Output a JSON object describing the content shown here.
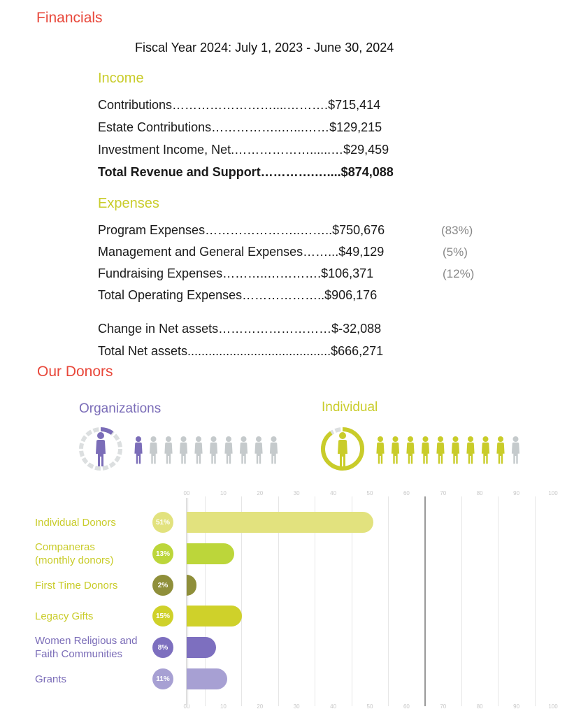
{
  "colors": {
    "heading_red": "#e8473a",
    "yellow": "#c9cc2a",
    "purple": "#7b6db8",
    "grey_figure": "#c5cacc"
  },
  "financials": {
    "title": "Financials",
    "fiscal_year": "Fiscal Year 2024: July 1, 2023 - June 30, 2024",
    "income": {
      "heading": "Income",
      "lines": [
        {
          "text": "Contributions……………………....……….$715,414",
          "bold": false
        },
        {
          "text": "Estate Contributions……………..…...……$129,215",
          "bold": false
        },
        {
          "text": "Investment Income, Net.………………......…$29,459",
          "bold": false
        },
        {
          "text": "Total Revenue and Support………….…....$874,088",
          "bold": true
        }
      ]
    },
    "expenses": {
      "heading": "Expenses",
      "lines": [
        {
          "text": "Program Expenses…………………..……..$750,676",
          "pct": "(83%)"
        },
        {
          "text": "Management and General Expenses……...$49,129",
          "pct": "(5%)"
        },
        {
          "text": "Fundraising Expenses………..………….$106,371",
          "pct": "(12%)"
        },
        {
          "text": "Total Operating Expenses………………..$906,176",
          "pct": ""
        }
      ]
    },
    "net": [
      {
        "text": "Change in Net assets………………………$-32,088"
      },
      {
        "text": "Total Net assets.........................................$666,271"
      }
    ]
  },
  "donors": {
    "title": "Our Donors",
    "organizations": {
      "label": "Organizations",
      "highlighted_of_ten": 1,
      "ring_fraction": 0.1
    },
    "individual": {
      "label": "Individual",
      "highlighted_of_ten": 9,
      "ring_fraction": 0.9
    }
  },
  "chart_data": {
    "type": "bar",
    "orientation": "horizontal",
    "categories": [
      "Individual Donors",
      "Companeras (monthly donors)",
      "First Time Donors",
      "Legacy Gifts",
      "Women Religious and Faith Communities",
      "Grants"
    ],
    "label_lines": [
      [
        "Individual Donors"
      ],
      [
        "Companeras",
        "(monthly donors)"
      ],
      [
        "First Time Donors"
      ],
      [
        "Legacy Gifts"
      ],
      [
        "Women Religious and",
        "Faith Communities"
      ],
      [
        "Grants"
      ]
    ],
    "values": [
      51,
      13,
      2,
      15,
      8,
      11
    ],
    "badges": [
      "51%",
      "13%",
      "2%",
      "15%",
      "8%",
      "11%"
    ],
    "bar_colors": [
      "#e2e27e",
      "#bcd63a",
      "#8f8f3a",
      "#cfd12a",
      "#7d6fbf",
      "#a7a0d3"
    ],
    "label_colors": [
      "#c9cc2a",
      "#c9cc2a",
      "#c9cc2a",
      "#c9cc2a",
      "#7b6db8",
      "#7b6db8"
    ],
    "ticks": [
      "00",
      "10",
      "20",
      "30",
      "40",
      "50",
      "60",
      "70",
      "80",
      "90",
      "100"
    ],
    "xlim": [
      0,
      100
    ],
    "grid": true
  }
}
